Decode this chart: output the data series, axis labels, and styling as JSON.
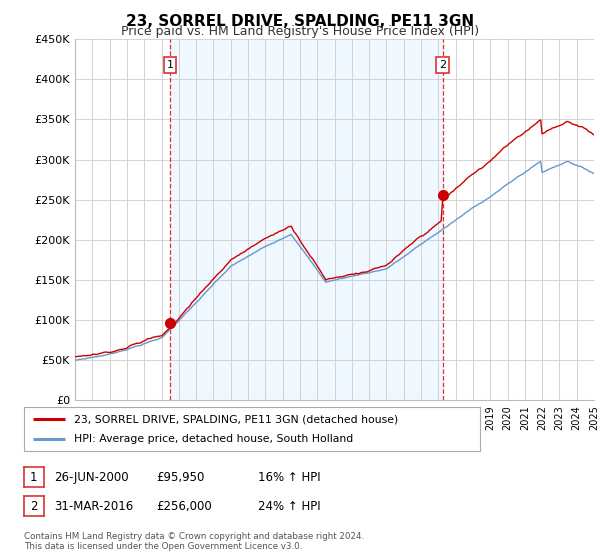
{
  "title": "23, SORREL DRIVE, SPALDING, PE11 3GN",
  "subtitle": "Price paid vs. HM Land Registry's House Price Index (HPI)",
  "title_fontsize": 11,
  "subtitle_fontsize": 9,
  "ylim": [
    0,
    450000
  ],
  "yticks": [
    0,
    50000,
    100000,
    150000,
    200000,
    250000,
    300000,
    350000,
    400000,
    450000
  ],
  "ytick_labels": [
    "£0",
    "£50K",
    "£100K",
    "£150K",
    "£200K",
    "£250K",
    "£300K",
    "£350K",
    "£400K",
    "£450K"
  ],
  "year_start": 1995,
  "year_end": 2025,
  "purchase1_date": 2000.49,
  "purchase1_price": 95950,
  "purchase2_date": 2016.25,
  "purchase2_price": 256000,
  "line_color_red": "#cc0000",
  "line_color_blue": "#6699cc",
  "bg_fill_color": "#ddeeff",
  "vline_color": "#dd3333",
  "background_color": "#ffffff",
  "grid_color": "#cccccc",
  "legend_label_red": "23, SORREL DRIVE, SPALDING, PE11 3GN (detached house)",
  "legend_label_blue": "HPI: Average price, detached house, South Holland",
  "table_row1": [
    "1",
    "26-JUN-2000",
    "£95,950",
    "16% ↑ HPI"
  ],
  "table_row2": [
    "2",
    "31-MAR-2016",
    "£256,000",
    "24% ↑ HPI"
  ],
  "footer": "Contains HM Land Registry data © Crown copyright and database right 2024.\nThis data is licensed under the Open Government Licence v3.0."
}
